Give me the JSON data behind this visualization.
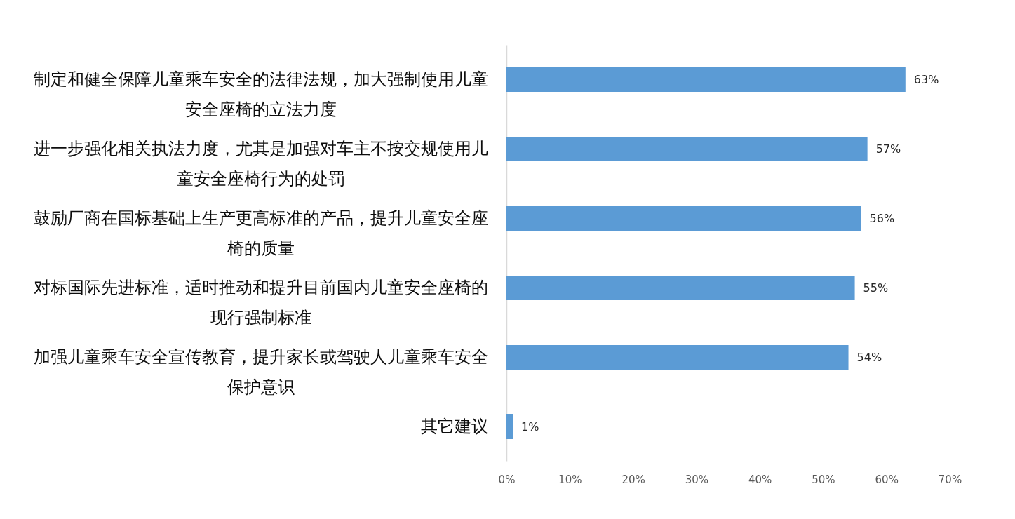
{
  "chart_data": {
    "type": "bar",
    "orientation": "horizontal",
    "categories": [
      "制定和健全保障儿童乘车安全的法律法规，加大强制使用儿童安全座椅的立法力度",
      "进一步强化相关执法力度，尤其是加强对车主不按交规使用儿童安全座椅行为的处罚",
      "鼓励厂商在国标基础上生产更高标准的产品，提升儿童安全座椅的质量",
      "对标国际先进标准，适时推动和提升目前国内儿童安全座椅的现行强制标准",
      "加强儿童乘车安全宣传教育，提升家长或驾驶人儿童乘车安全保护意识",
      "其它建议"
    ],
    "values": [
      63,
      57,
      56,
      55,
      54,
      1
    ],
    "color": "#5b9bd5",
    "value_labels": [
      "63%",
      "57%",
      "56%",
      "55%",
      "54%",
      "1%"
    ],
    "xlim": [
      0,
      70
    ],
    "xticks": [
      {
        "value": 0,
        "label": "0%"
      },
      {
        "value": 10,
        "label": "10%"
      },
      {
        "value": 20,
        "label": "20%"
      },
      {
        "value": 30,
        "label": "30%"
      },
      {
        "value": 40,
        "label": "40%"
      },
      {
        "value": 50,
        "label": "50%"
      },
      {
        "value": 60,
        "label": "60%"
      },
      {
        "value": 70,
        "label": "70%"
      }
    ]
  }
}
